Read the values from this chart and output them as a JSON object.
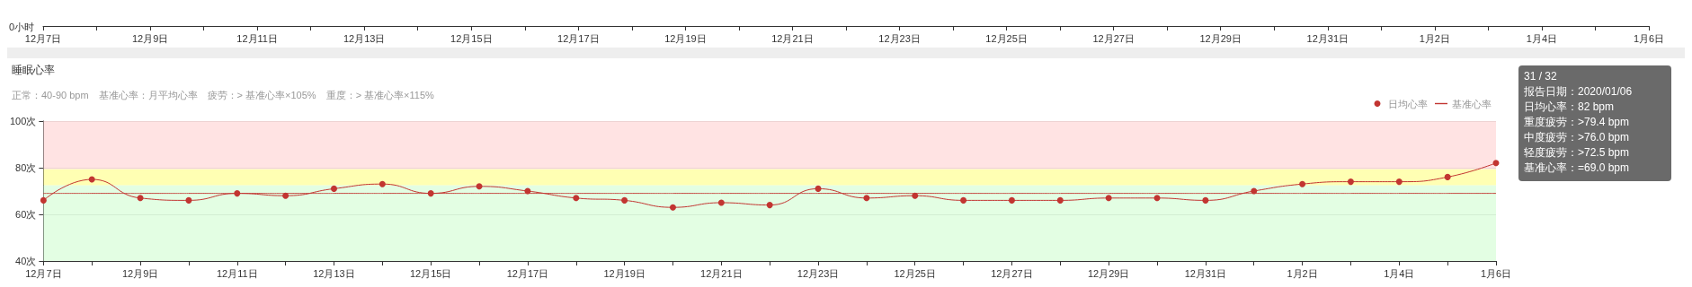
{
  "chart_data": [
    {
      "type": "other",
      "categories": [
        "12月7日",
        null,
        "12月9日",
        null,
        "12月11日",
        null,
        "12月13日",
        null,
        "12月15日",
        null,
        "12月17日",
        null,
        "12月19日",
        null,
        "12月21日",
        null,
        "12月23日",
        null,
        "12月25日",
        null,
        "12月27日",
        null,
        "12月29日",
        null,
        "12月31日",
        null,
        "1月2日",
        null,
        "1月4日",
        null,
        "1月6日"
      ],
      "annotations": [
        "0小时"
      ]
    },
    {
      "type": "line",
      "title": "睡眠心率",
      "subtitle": "正常：40-90 bpm　基准心率：月平均心率　疲劳：> 基准心率×105%　重度：> 基准心率×115%",
      "categories": [
        "12月7日",
        null,
        "12月9日",
        null,
        "12月11日",
        null,
        "12月13日",
        null,
        "12月15日",
        null,
        "12月17日",
        null,
        "12月19日",
        null,
        "12月21日",
        null,
        "12月23日",
        null,
        "12月25日",
        null,
        "12月27日",
        null,
        "12月29日",
        null,
        "12月31日",
        null,
        "1月2日",
        null,
        "1月4日",
        null,
        "1月6日"
      ],
      "series": [
        {
          "name": "日均心率",
          "color": "#c23531",
          "marker": "circle",
          "line_style": "solid",
          "values": [
            66,
            75,
            67,
            66,
            69,
            68,
            71,
            73,
            69,
            72,
            70,
            67,
            66,
            63,
            65,
            64,
            71,
            67,
            68,
            66,
            66,
            66,
            67,
            67,
            66,
            70,
            73,
            74,
            74,
            76,
            82
          ]
        },
        {
          "name": "基准心率",
          "color": "#c23531",
          "marker": "none",
          "line_style": "dotted",
          "values": [
            69,
            69,
            69,
            69,
            69,
            69,
            69,
            69,
            69,
            69,
            69,
            69,
            69,
            69,
            69,
            69,
            69,
            69,
            69,
            69,
            69,
            69,
            69,
            69,
            69,
            69,
            69,
            69,
            69,
            69,
            69
          ]
        }
      ],
      "bands": [
        {
          "axis": "y",
          "from": 40,
          "to": 72.5,
          "color": "#d9fdd9"
        },
        {
          "axis": "y",
          "from": 72.5,
          "to": 79.4,
          "color": "#ffff99"
        },
        {
          "axis": "y",
          "from": 79.4,
          "to": 100,
          "color": "#ffd9d9"
        }
      ],
      "ylim": [
        40,
        100
      ],
      "yticks": [
        {
          "value": 40,
          "label": "40次"
        },
        {
          "value": 60,
          "label": "60次"
        },
        {
          "value": 80,
          "label": "80次"
        },
        {
          "value": 100,
          "label": "100次"
        }
      ],
      "grid": "y",
      "legend": "top right",
      "annotations": [
        "31 / 32",
        "报告日期：2020/01/06",
        "日均心率：82 bpm",
        "重度疲劳：>79.4 bpm",
        "中度疲劳：>76.0 bpm",
        "轻度疲劳：>72.5 bpm",
        "基准心率：=69.0 bpm"
      ]
    }
  ]
}
